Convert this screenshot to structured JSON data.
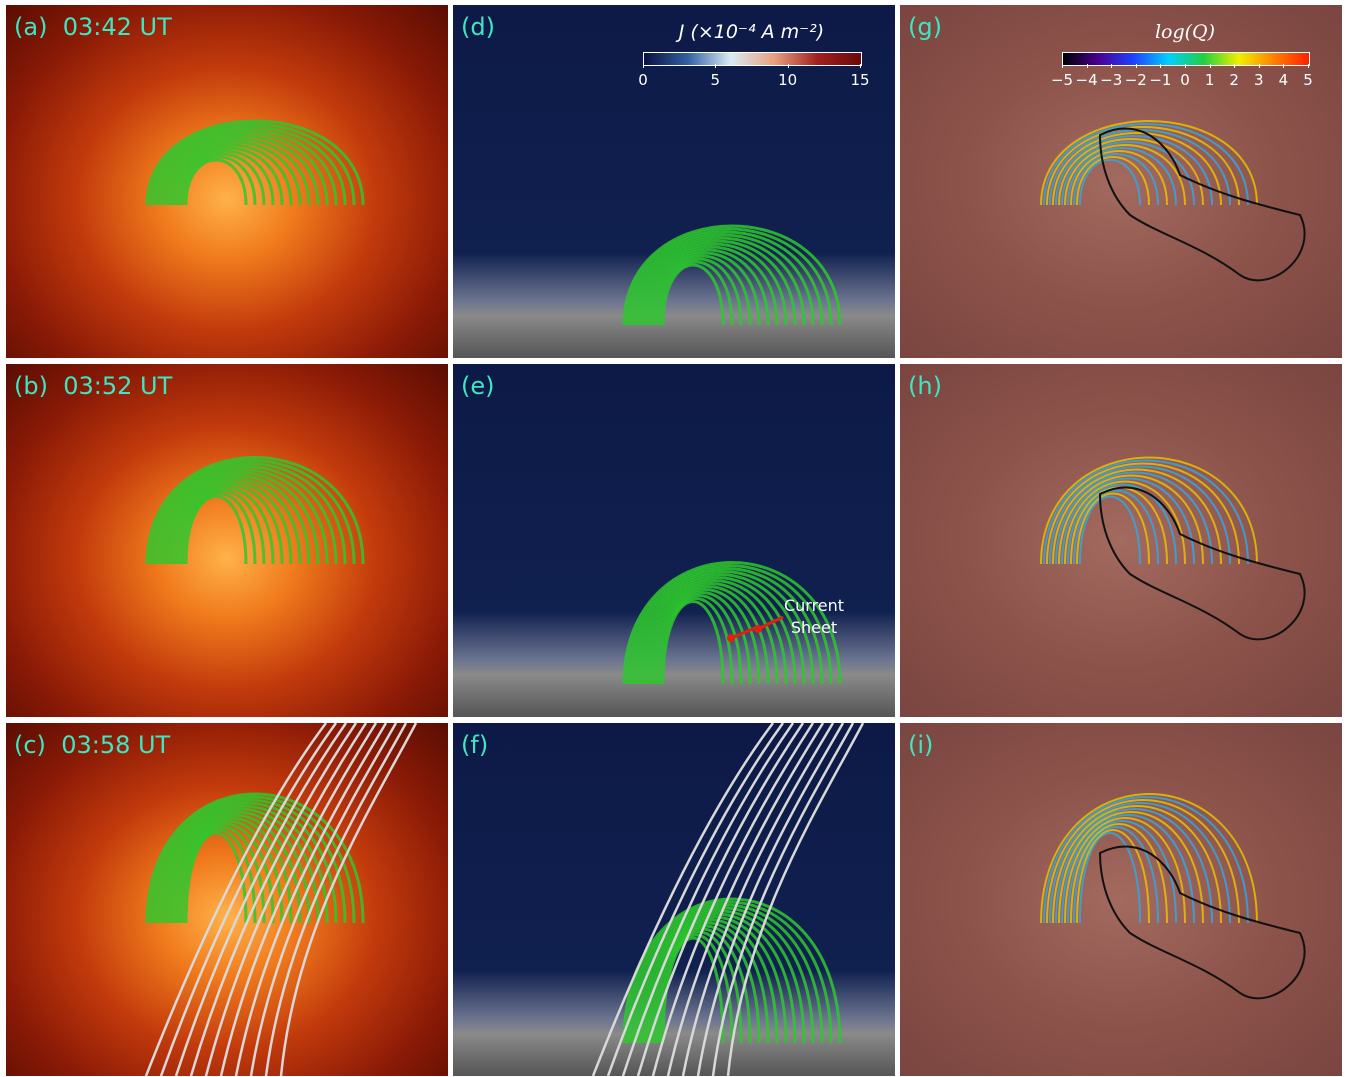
{
  "panels": [
    {
      "label": "(a)",
      "time": "03:42 UT"
    },
    {
      "label": "(b)",
      "time": "03:52 UT"
    },
    {
      "label": "(c)",
      "time": "03:58 UT"
    },
    {
      "label": "(d)"
    },
    {
      "label": "(e)"
    },
    {
      "label": "(f)"
    },
    {
      "label": "(g)"
    },
    {
      "label": "(h)"
    },
    {
      "label": "(i)"
    }
  ],
  "colorbars": [
    {
      "title": "J (×10⁻⁴ A m⁻²)",
      "lim": [
        0,
        15
      ],
      "ticks": [
        0,
        5,
        10,
        15
      ]
    },
    {
      "title": "log(Q)",
      "lim": [
        -5,
        5
      ],
      "ticks": [
        {
          "value": -5,
          "label": "−5"
        },
        {
          "value": -4,
          "label": "−4"
        },
        {
          "value": -3,
          "label": "−3"
        },
        {
          "value": -2,
          "label": "−2"
        },
        {
          "value": -1,
          "label": "−1"
        },
        0,
        1,
        2,
        3,
        4,
        5
      ]
    }
  ],
  "annotation": "Current Sheet"
}
